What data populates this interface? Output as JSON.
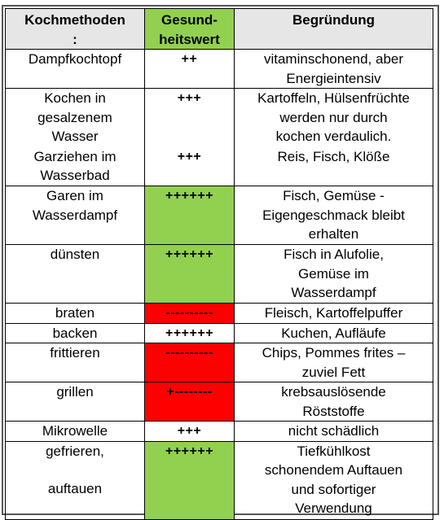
{
  "headers": {
    "method": [
      "Kochmethoden",
      ":"
    ],
    "health": [
      "Gesund-",
      "heitswert"
    ],
    "reason": "Begründung"
  },
  "rows": [
    {
      "method": [
        "Dampfkochtopf"
      ],
      "rating": "++",
      "reason": [
        "vitaminschonend, aber",
        "Energieintensiv"
      ]
    },
    {
      "method": [
        "Kochen in",
        "gesalzenem",
        "Wasser"
      ],
      "rating": "+++",
      "reason": [
        "Kartoffeln, Hülsenfrüchte",
        "werden nur durch",
        "kochen verdaulich."
      ]
    },
    {
      "method": [
        "Garziehen im",
        "Wasserbad"
      ],
      "rating": "+++",
      "reason": [
        "Reis, Fisch, Klöße"
      ]
    },
    {
      "method": [
        "Garen im",
        "Wasserdampf"
      ],
      "rating": "++++++",
      "reason": [
        "Fisch, Gemüse -",
        "Eigengeschmack bleibt",
        "erhalten"
      ]
    },
    {
      "method": [
        "dünsten"
      ],
      "rating": "++++++",
      "reason": [
        "Fisch in Alufolie,",
        "Gemüse im",
        "Wasserdampf"
      ]
    },
    {
      "method": [
        "braten"
      ],
      "rating": "----------",
      "reason": [
        "Fleisch, Kartoffelpuffer"
      ]
    },
    {
      "method": [
        "backen"
      ],
      "rating": "++++++",
      "reason": [
        "Kuchen, Aufläufe"
      ]
    },
    {
      "method": [
        "frittieren"
      ],
      "rating": "----------",
      "reason": [
        "Chips, Pommes frites –",
        "zuviel Fett"
      ]
    },
    {
      "method": [
        "grillen"
      ],
      "rating": "+--------",
      "reason": [
        "krebsauslösende",
        "Röststoffe"
      ]
    },
    {
      "method": [
        "Mikrowelle"
      ],
      "rating": "+++",
      "reason": [
        "nicht schädlich"
      ]
    },
    {
      "method": [
        "gefrieren,",
        "",
        "auftauen"
      ],
      "rating": "++++++",
      "reason": [
        "Tiefkühlkost",
        "schonendem Auftauen",
        "und sofortiger",
        "Verwendung"
      ]
    }
  ],
  "colors": {
    "good": "#92d050",
    "bad": "#ff0000",
    "header_gray": "#e6e6e6"
  }
}
